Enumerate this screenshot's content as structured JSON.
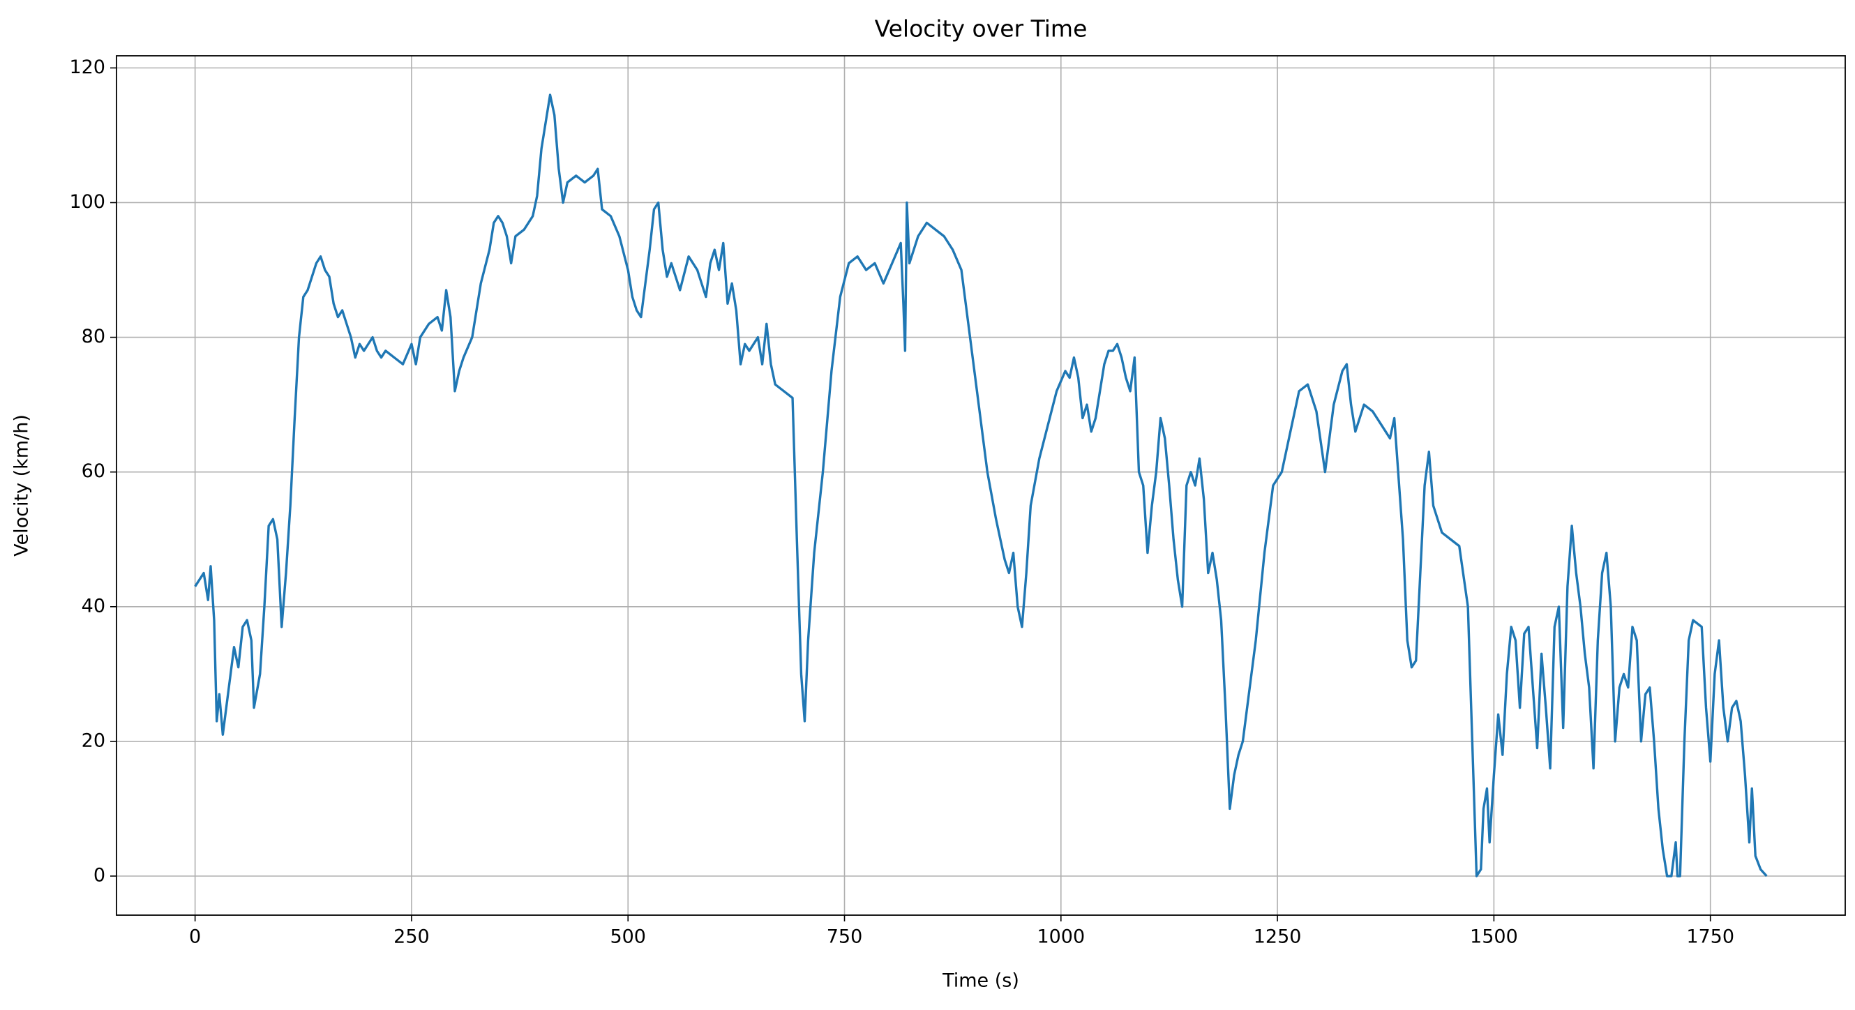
{
  "chart_data": {
    "type": "line",
    "title": "Velocity over Time",
    "xlabel": "Time (s)",
    "ylabel": "Velocity (km/h)",
    "xlim": [
      -90.75,
      1905.75
    ],
    "ylim": [
      -5.8,
      121.8
    ],
    "xticks": [
      0,
      250,
      500,
      750,
      1000,
      1250,
      1500,
      1750
    ],
    "yticks": [
      0,
      20,
      40,
      60,
      80,
      100,
      120
    ],
    "grid": true,
    "series": [
      {
        "name": "Velocity",
        "color": "#1f77b4",
        "x": [
          0,
          5,
          10,
          15,
          18,
          22,
          25,
          28,
          32,
          38,
          45,
          50,
          55,
          60,
          65,
          68,
          75,
          80,
          85,
          90,
          95,
          100,
          105,
          110,
          115,
          120,
          125,
          130,
          135,
          140,
          145,
          150,
          155,
          160,
          165,
          170,
          175,
          180,
          185,
          190,
          195,
          200,
          205,
          210,
          215,
          220,
          230,
          240,
          250,
          255,
          260,
          270,
          280,
          285,
          290,
          295,
          300,
          305,
          310,
          320,
          330,
          340,
          345,
          350,
          355,
          360,
          365,
          370,
          380,
          390,
          395,
          400,
          405,
          410,
          415,
          420,
          425,
          430,
          440,
          450,
          460,
          465,
          470,
          480,
          490,
          500,
          505,
          510,
          515,
          520,
          525,
          530,
          535,
          540,
          545,
          550,
          560,
          570,
          580,
          585,
          590,
          595,
          600,
          605,
          610,
          615,
          620,
          625,
          630,
          635,
          640,
          650,
          655,
          660,
          665,
          670,
          680,
          690,
          695,
          700,
          704,
          708,
          715,
          725,
          735,
          745,
          755,
          765,
          775,
          785,
          795,
          805,
          815,
          818,
          820,
          822,
          825,
          835,
          845,
          855,
          865,
          875,
          885,
          895,
          905,
          915,
          925,
          935,
          940,
          945,
          950,
          955,
          960,
          965,
          975,
          985,
          995,
          1005,
          1010,
          1015,
          1020,
          1025,
          1030,
          1035,
          1040,
          1045,
          1050,
          1055,
          1060,
          1065,
          1070,
          1075,
          1080,
          1085,
          1090,
          1095,
          1100,
          1105,
          1110,
          1115,
          1120,
          1125,
          1130,
          1135,
          1140,
          1145,
          1150,
          1155,
          1160,
          1165,
          1170,
          1175,
          1180,
          1185,
          1190,
          1195,
          1200,
          1205,
          1210,
          1215,
          1220,
          1225,
          1235,
          1245,
          1255,
          1265,
          1275,
          1285,
          1295,
          1305,
          1315,
          1325,
          1330,
          1335,
          1340,
          1350,
          1360,
          1370,
          1380,
          1385,
          1395,
          1400,
          1405,
          1410,
          1415,
          1420,
          1425,
          1430,
          1440,
          1450,
          1460,
          1470,
          1475,
          1480,
          1485,
          1488,
          1492,
          1495,
          1500,
          1505,
          1510,
          1515,
          1520,
          1525,
          1530,
          1535,
          1540,
          1545,
          1550,
          1555,
          1560,
          1565,
          1570,
          1575,
          1580,
          1585,
          1590,
          1595,
          1600,
          1605,
          1610,
          1615,
          1620,
          1625,
          1630,
          1635,
          1640,
          1645,
          1650,
          1655,
          1660,
          1665,
          1670,
          1675,
          1680,
          1685,
          1690,
          1695,
          1700,
          1705,
          1710,
          1712,
          1715,
          1720,
          1725,
          1730,
          1740,
          1745,
          1750,
          1755,
          1760,
          1765,
          1770,
          1775,
          1780,
          1785,
          1790,
          1795,
          1798,
          1802,
          1808,
          1815
        ],
        "values": [
          43,
          44,
          45,
          41,
          46,
          38,
          23,
          27,
          21,
          27,
          34,
          31,
          37,
          38,
          35,
          25,
          30,
          40,
          52,
          53,
          50,
          37,
          45,
          55,
          68,
          80,
          86,
          87,
          89,
          91,
          92,
          90,
          89,
          85,
          83,
          84,
          82,
          80,
          77,
          79,
          78,
          79,
          80,
          78,
          77,
          78,
          77,
          76,
          79,
          76,
          80,
          82,
          83,
          81,
          87,
          83,
          72,
          75,
          77,
          80,
          88,
          93,
          97,
          98,
          97,
          95,
          91,
          95,
          96,
          98,
          101,
          108,
          112,
          116,
          113,
          105,
          100,
          103,
          104,
          103,
          104,
          105,
          99,
          98,
          95,
          90,
          86,
          84,
          83,
          88,
          93,
          99,
          100,
          93,
          89,
          91,
          87,
          92,
          90,
          88,
          86,
          91,
          93,
          90,
          94,
          85,
          88,
          84,
          76,
          79,
          78,
          80,
          76,
          82,
          76,
          73,
          72,
          71,
          50,
          30,
          23,
          35,
          48,
          60,
          75,
          86,
          91,
          92,
          90,
          91,
          88,
          91,
          94,
          85,
          78,
          100,
          91,
          95,
          97,
          96,
          95,
          93,
          90,
          80,
          70,
          60,
          53,
          47,
          45,
          48,
          40,
          37,
          45,
          55,
          62,
          67,
          72,
          75,
          74,
          77,
          74,
          68,
          70,
          66,
          68,
          72,
          76,
          78,
          78,
          79,
          77,
          74,
          72,
          77,
          60,
          58,
          48,
          55,
          60,
          68,
          65,
          58,
          50,
          44,
          40,
          58,
          60,
          58,
          62,
          56,
          45,
          48,
          44,
          38,
          25,
          10,
          15,
          18,
          20,
          25,
          30,
          35,
          48,
          58,
          60,
          66,
          72,
          73,
          69,
          60,
          70,
          75,
          76,
          70,
          66,
          70,
          69,
          67,
          65,
          68,
          50,
          35,
          31,
          32,
          45,
          58,
          63,
          55,
          51,
          50,
          49,
          40,
          20,
          0,
          1,
          10,
          13,
          5,
          15,
          24,
          18,
          30,
          37,
          35,
          25,
          36,
          37,
          28,
          19,
          33,
          25,
          16,
          37,
          40,
          22,
          43,
          52,
          45,
          40,
          33,
          28,
          16,
          35,
          45,
          48,
          40,
          20,
          28,
          30,
          28,
          37,
          35,
          20,
          27,
          28,
          20,
          10,
          4,
          0,
          0,
          5,
          0,
          0,
          20,
          35,
          38,
          37,
          25,
          17,
          30,
          35,
          25,
          20,
          25,
          26,
          23,
          15,
          5,
          13,
          3,
          1,
          0
        ]
      }
    ]
  }
}
